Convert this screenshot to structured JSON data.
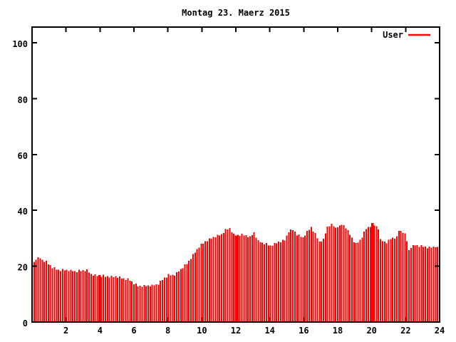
{
  "title": "Montag 23. Maerz 2015",
  "legend": {
    "label": "User",
    "color": "#ff0000"
  },
  "axes": {
    "x_ticks": [
      2,
      4,
      6,
      8,
      10,
      12,
      14,
      16,
      18,
      20,
      22,
      24
    ],
    "y_ticks": [
      0,
      20,
      40,
      60,
      80,
      100
    ],
    "frame_color": "#000000",
    "text_color": "#000000"
  },
  "chart_data": {
    "type": "bar",
    "style": "impulses",
    "title": "Montag 23. Maerz 2015",
    "xlabel": "",
    "ylabel": "",
    "xlim": [
      0,
      24
    ],
    "ylim": [
      0,
      105.6
    ],
    "grid": false,
    "legend_position": "top-right",
    "x_unit": "hour-of-day",
    "series": [
      {
        "name": "User",
        "color": "#ff0000",
        "interval_hours": 0.12,
        "wide_bar_indices": [
          32,
          99,
          166
        ],
        "values": [
          21.5,
          22.3,
          23.2,
          22.8,
          22.3,
          21.6,
          21.9,
          20.7,
          20.4,
          19.2,
          19.7,
          18.8,
          18.8,
          18.3,
          19.0,
          18.5,
          18.8,
          18.2,
          18.8,
          18.2,
          18.3,
          17.9,
          18.7,
          18.3,
          18.6,
          18.2,
          18.9,
          17.7,
          17.2,
          16.6,
          17.1,
          16.5,
          16.8,
          16.2,
          16.9,
          16.2,
          16.4,
          15.9,
          16.6,
          16.1,
          16.4,
          15.8,
          16.3,
          15.6,
          15.7,
          15.1,
          15.7,
          14.8,
          14.5,
          13.5,
          13.8,
          12.8,
          13.0,
          12.6,
          13.3,
          12.9,
          13.2,
          12.7,
          13.4,
          13.1,
          13.5,
          13.4,
          14.8,
          15.1,
          15.9,
          16.0,
          17.2,
          16.7,
          16.9,
          16.6,
          17.9,
          18.1,
          19.0,
          19.2,
          20.7,
          20.8,
          22.0,
          22.6,
          24.3,
          24.9,
          26.2,
          26.7,
          28.1,
          28.1,
          29.0,
          28.9,
          30.0,
          29.9,
          30.5,
          30.3,
          31.3,
          31.0,
          31.5,
          31.9,
          33.3,
          33.2,
          33.7,
          32.1,
          31.6,
          31.0,
          31.2,
          30.9,
          31.6,
          31.0,
          31.1,
          30.3,
          30.8,
          31.1,
          32.2,
          30.2,
          29.3,
          28.6,
          28.5,
          27.8,
          28.3,
          27.4,
          27.4,
          27.3,
          28.3,
          28.2,
          28.8,
          28.6,
          29.5,
          29.2,
          31.0,
          32.1,
          33.1,
          32.9,
          32.4,
          31.0,
          31.4,
          30.5,
          30.4,
          31.0,
          32.6,
          33.0,
          34.0,
          32.4,
          31.9,
          30.0,
          28.8,
          28.8,
          29.8,
          31.7,
          34.2,
          34.3,
          35.2,
          34.3,
          33.8,
          33.9,
          34.6,
          34.8,
          34.7,
          33.5,
          32.9,
          31.2,
          30.2,
          28.6,
          28.3,
          28.4,
          29.5,
          30.2,
          32.4,
          33.3,
          34.0,
          34.1,
          35.5,
          34.5,
          34.3,
          33.2,
          29.7,
          28.9,
          28.8,
          28.2,
          29.5,
          29.7,
          30.2,
          29.8,
          30.7,
          32.6,
          32.6,
          31.9,
          31.8,
          28.9,
          25.8,
          26.5,
          27.6,
          27.4,
          27.5,
          26.9,
          27.5,
          26.9,
          27.1,
          26.4,
          27.0,
          26.6,
          27.0,
          26.8,
          26.9,
          22.5
        ]
      }
    ]
  }
}
